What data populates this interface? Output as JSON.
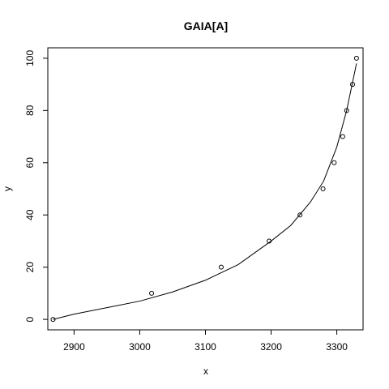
{
  "chart_data": {
    "type": "scatter",
    "title": "GAIA[A]",
    "xlabel": "x",
    "ylabel": "y",
    "xlim": [
      2860,
      3340
    ],
    "ylim": [
      -4,
      104
    ],
    "grid": false,
    "x_ticks": [
      2900,
      3000,
      3100,
      3200,
      3300
    ],
    "y_ticks": [
      0,
      20,
      40,
      60,
      80,
      100
    ],
    "points": {
      "x": [
        2868,
        3018,
        3124,
        3197,
        3244,
        3279,
        3296,
        3309,
        3315,
        3324,
        3330
      ],
      "y": [
        0,
        10,
        20,
        30,
        40,
        50,
        60,
        70,
        80,
        90,
        100
      ]
    },
    "fit_line": {
      "x": [
        2868,
        2900,
        2950,
        3000,
        3050,
        3100,
        3150,
        3200,
        3230,
        3260,
        3280,
        3300,
        3315,
        3330
      ],
      "y": [
        0,
        2,
        4.5,
        7,
        10.5,
        15,
        21,
        30,
        36,
        45,
        53,
        66,
        80,
        98
      ]
    }
  }
}
